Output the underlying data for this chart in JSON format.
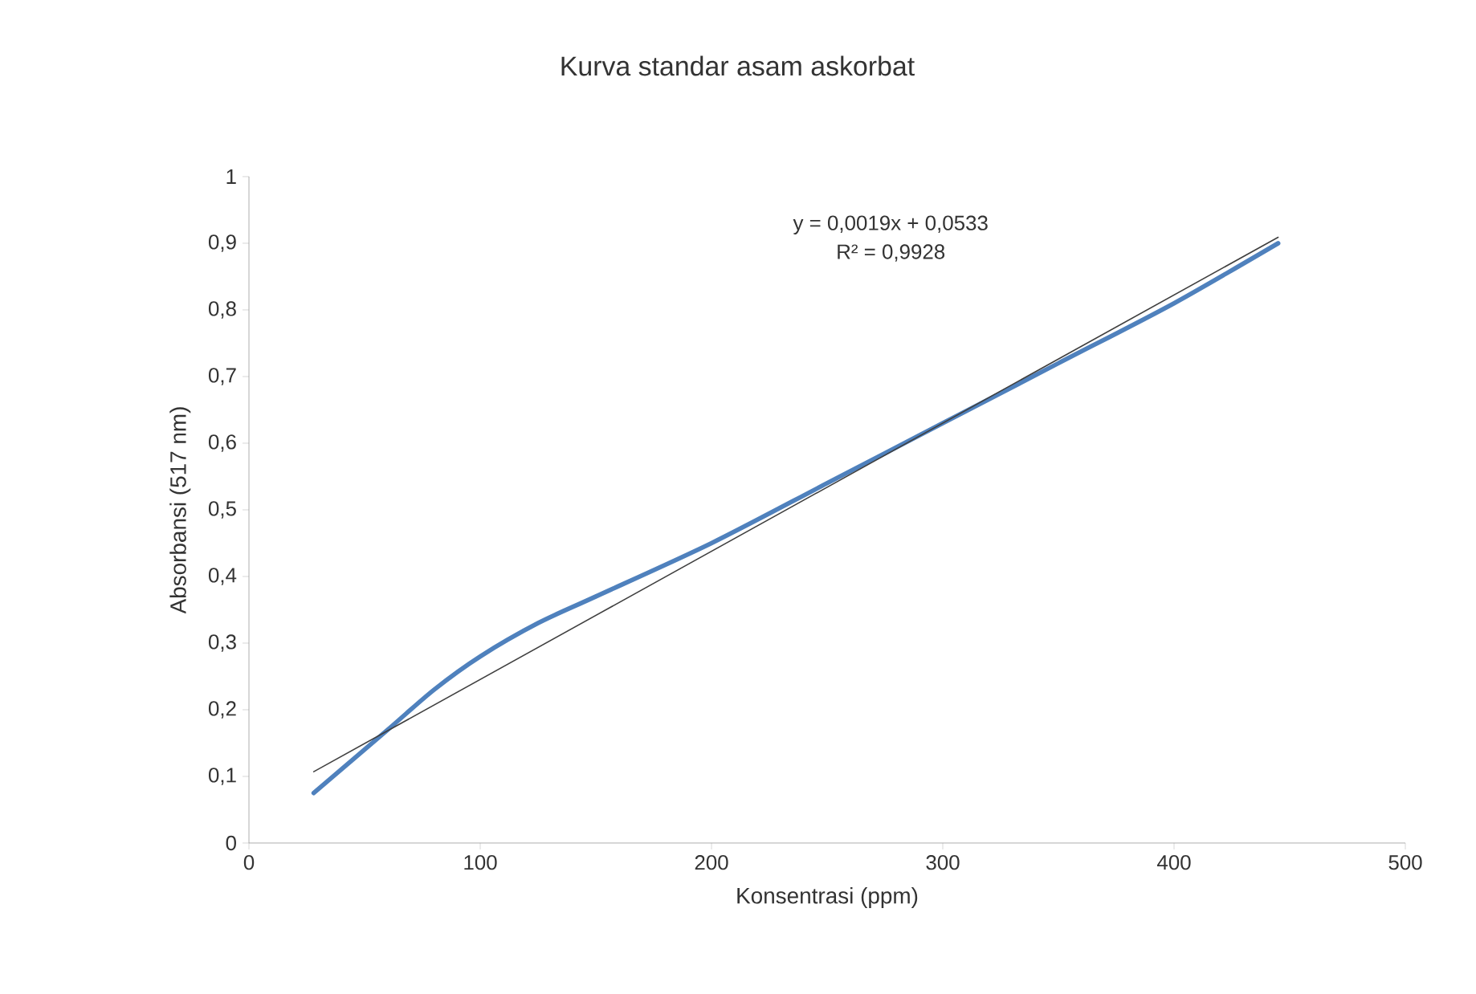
{
  "chart_data": {
    "type": "line",
    "title": "Kurva standar asam askorbat",
    "xlabel": "Konsentrasi (ppm)",
    "ylabel": "Absorbansi (517 nm)",
    "annotations": [
      "y = 0,0019x + 0,0533",
      "R² = 0,9928"
    ],
    "xlim": [
      0,
      500
    ],
    "ylim": [
      0,
      1
    ],
    "xticks": [
      0,
      100,
      200,
      300,
      400,
      500
    ],
    "yticks": [
      0,
      {
        "value": 0.1,
        "label": "0,1"
      },
      {
        "value": 0.2,
        "label": "0,2"
      },
      {
        "value": 0.3,
        "label": "0,3"
      },
      {
        "value": 0.4,
        "label": "0,4"
      },
      {
        "value": 0.5,
        "label": "0,5"
      },
      {
        "value": 0.6,
        "label": "0,6"
      },
      {
        "value": 0.7,
        "label": "0,7"
      },
      {
        "value": 0.8,
        "label": "0,8"
      },
      {
        "value": 0.9,
        "label": "0,9"
      },
      1
    ],
    "series": [
      {
        "color": "#4f81bd",
        "x": [
          28,
          60,
          80,
          100,
          125,
          150,
          200,
          250,
          300,
          350,
          400,
          445
        ],
        "values": [
          0.075,
          0.17,
          0.23,
          0.28,
          0.33,
          0.37,
          0.45,
          0.54,
          0.63,
          0.72,
          0.81,
          0.9
        ]
      },
      {
        "color": "#404040",
        "x": [
          28,
          445
        ],
        "values": [
          0.107,
          0.909
        ]
      }
    ]
  }
}
